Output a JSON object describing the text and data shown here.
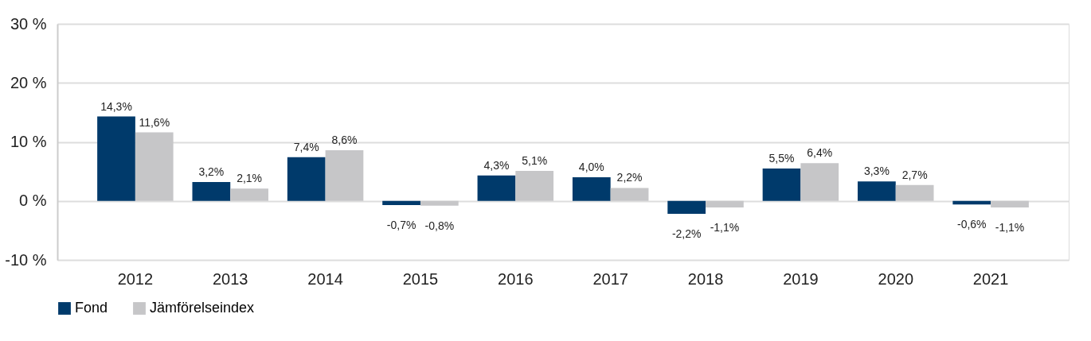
{
  "chart_data": {
    "type": "bar",
    "categories": [
      "2012",
      "2013",
      "2014",
      "2015",
      "2016",
      "2017",
      "2018",
      "2019",
      "2020",
      "2021"
    ],
    "series": [
      {
        "name": "Fond",
        "color": "#003a6b",
        "values": [
          14.3,
          3.2,
          7.4,
          -0.7,
          4.3,
          4.0,
          -2.2,
          5.5,
          3.3,
          -0.6
        ],
        "value_labels": [
          "14,3%",
          "3,2%",
          "7,4%",
          "-0,7%",
          "4,3%",
          "4,0%",
          "-2,2%",
          "5,5%",
          "3,3%",
          "-0,6%"
        ]
      },
      {
        "name": "Jämförelseindex",
        "color": "#c6c6c8",
        "values": [
          11.6,
          2.1,
          8.6,
          -0.8,
          5.1,
          2.2,
          -1.1,
          6.4,
          2.7,
          -1.1
        ],
        "value_labels": [
          "11,6%",
          "2,1%",
          "8,6%",
          "-0,8%",
          "5,1%",
          "2,2%",
          "-1,1%",
          "6,4%",
          "2,7%",
          "-1,1%"
        ]
      }
    ],
    "ylim": [
      -10,
      30
    ],
    "yticks": [
      {
        "value": -10,
        "label": "-10 %"
      },
      {
        "value": 0,
        "label": "0 %"
      },
      {
        "value": 10,
        "label": "10 %"
      },
      {
        "value": 20,
        "label": "20 %"
      },
      {
        "value": 30,
        "label": "30 %"
      }
    ],
    "grid": "y",
    "legend": "bottom"
  }
}
